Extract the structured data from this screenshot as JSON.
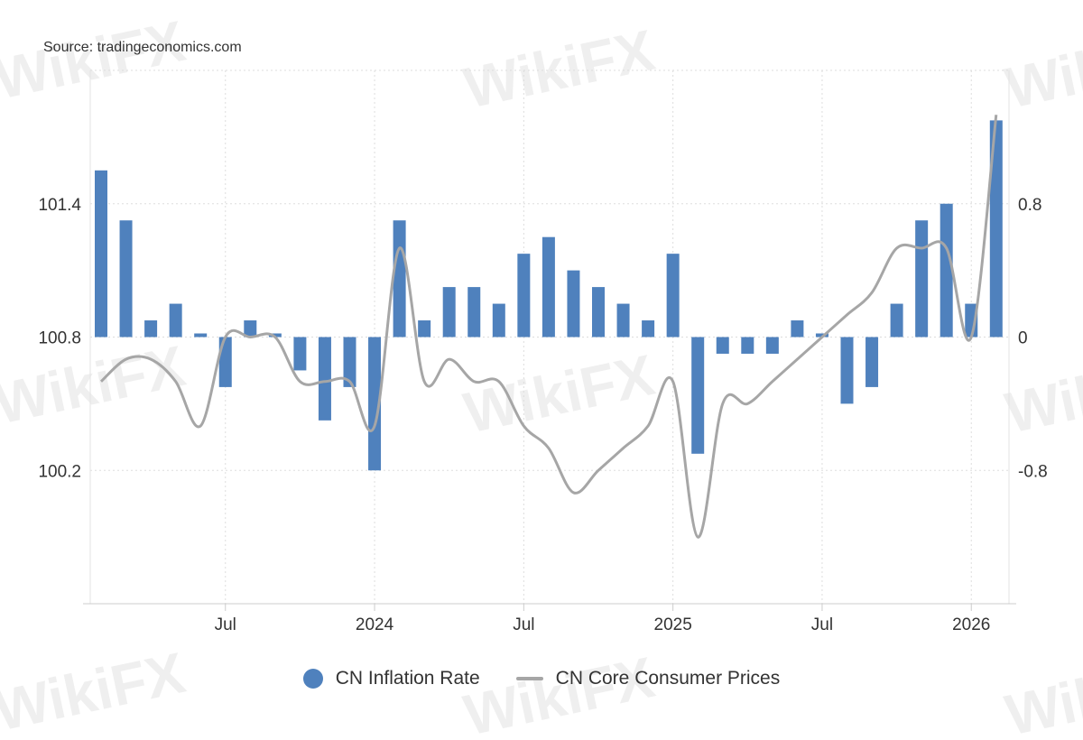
{
  "source": "Source: tradingeconomics.com",
  "watermark": "WikiFX",
  "chart_data": {
    "type": "bar+line",
    "x": [
      "2023-02",
      "2023-03",
      "2023-04",
      "2023-05",
      "2023-06",
      "2023-07",
      "2023-08",
      "2023-09",
      "2023-10",
      "2023-11",
      "2023-12",
      "2024-01",
      "2024-02",
      "2024-03",
      "2024-04",
      "2024-05",
      "2024-06",
      "2024-07",
      "2024-08",
      "2024-09",
      "2024-10",
      "2024-11",
      "2024-12",
      "2025-01",
      "2025-02",
      "2025-03",
      "2025-04",
      "2025-05",
      "2025-06",
      "2025-07",
      "2025-08",
      "2025-09",
      "2025-10",
      "2025-11",
      "2025-12",
      "2026-01",
      "2026-02"
    ],
    "x_tick_labels": [
      {
        "month": "2023-07",
        "label": "Jul"
      },
      {
        "month": "2024-01",
        "label": "2024"
      },
      {
        "month": "2024-07",
        "label": "Jul"
      },
      {
        "month": "2025-01",
        "label": "2025"
      },
      {
        "month": "2025-07",
        "label": "Jul"
      },
      {
        "month": "2026-01",
        "label": "2026"
      }
    ],
    "left_axis": {
      "ticks": [
        "100.2",
        "100.8",
        "101.4"
      ],
      "ylim": [
        99.6,
        102.0
      ]
    },
    "right_axis": {
      "ticks": [
        "-0.8",
        "0",
        "0.8"
      ],
      "ylim": [
        -1.6,
        1.6
      ]
    },
    "grid": true,
    "legend_position": "bottom",
    "series": [
      {
        "name": "CN Inflation Rate",
        "type": "bar",
        "axis": "right",
        "color": "#4f81bd",
        "values": [
          1.0,
          0.7,
          0.1,
          0.2,
          0.0,
          -0.3,
          0.1,
          0.0,
          -0.2,
          -0.5,
          -0.3,
          -0.8,
          0.7,
          0.1,
          0.3,
          0.3,
          0.2,
          0.5,
          0.6,
          0.4,
          0.3,
          0.2,
          0.1,
          0.5,
          -0.7,
          -0.1,
          -0.1,
          -0.1,
          0.1,
          0.0,
          -0.4,
          -0.3,
          0.2,
          0.7,
          0.8,
          0.2,
          1.3
        ]
      },
      {
        "name": "CN Core Consumer Prices",
        "type": "line",
        "axis": "left",
        "color": "#a6a6a6",
        "values": [
          100.6,
          100.7,
          100.7,
          100.6,
          100.4,
          100.8,
          100.8,
          100.8,
          100.6,
          100.6,
          100.6,
          100.4,
          101.2,
          100.6,
          100.7,
          100.6,
          100.6,
          100.4,
          100.3,
          100.1,
          100.2,
          100.3,
          100.4,
          100.6,
          99.9,
          100.5,
          100.5,
          100.6,
          100.7,
          100.8,
          100.9,
          101.0,
          101.2,
          101.2,
          101.2,
          100.8,
          101.8
        ]
      }
    ]
  }
}
